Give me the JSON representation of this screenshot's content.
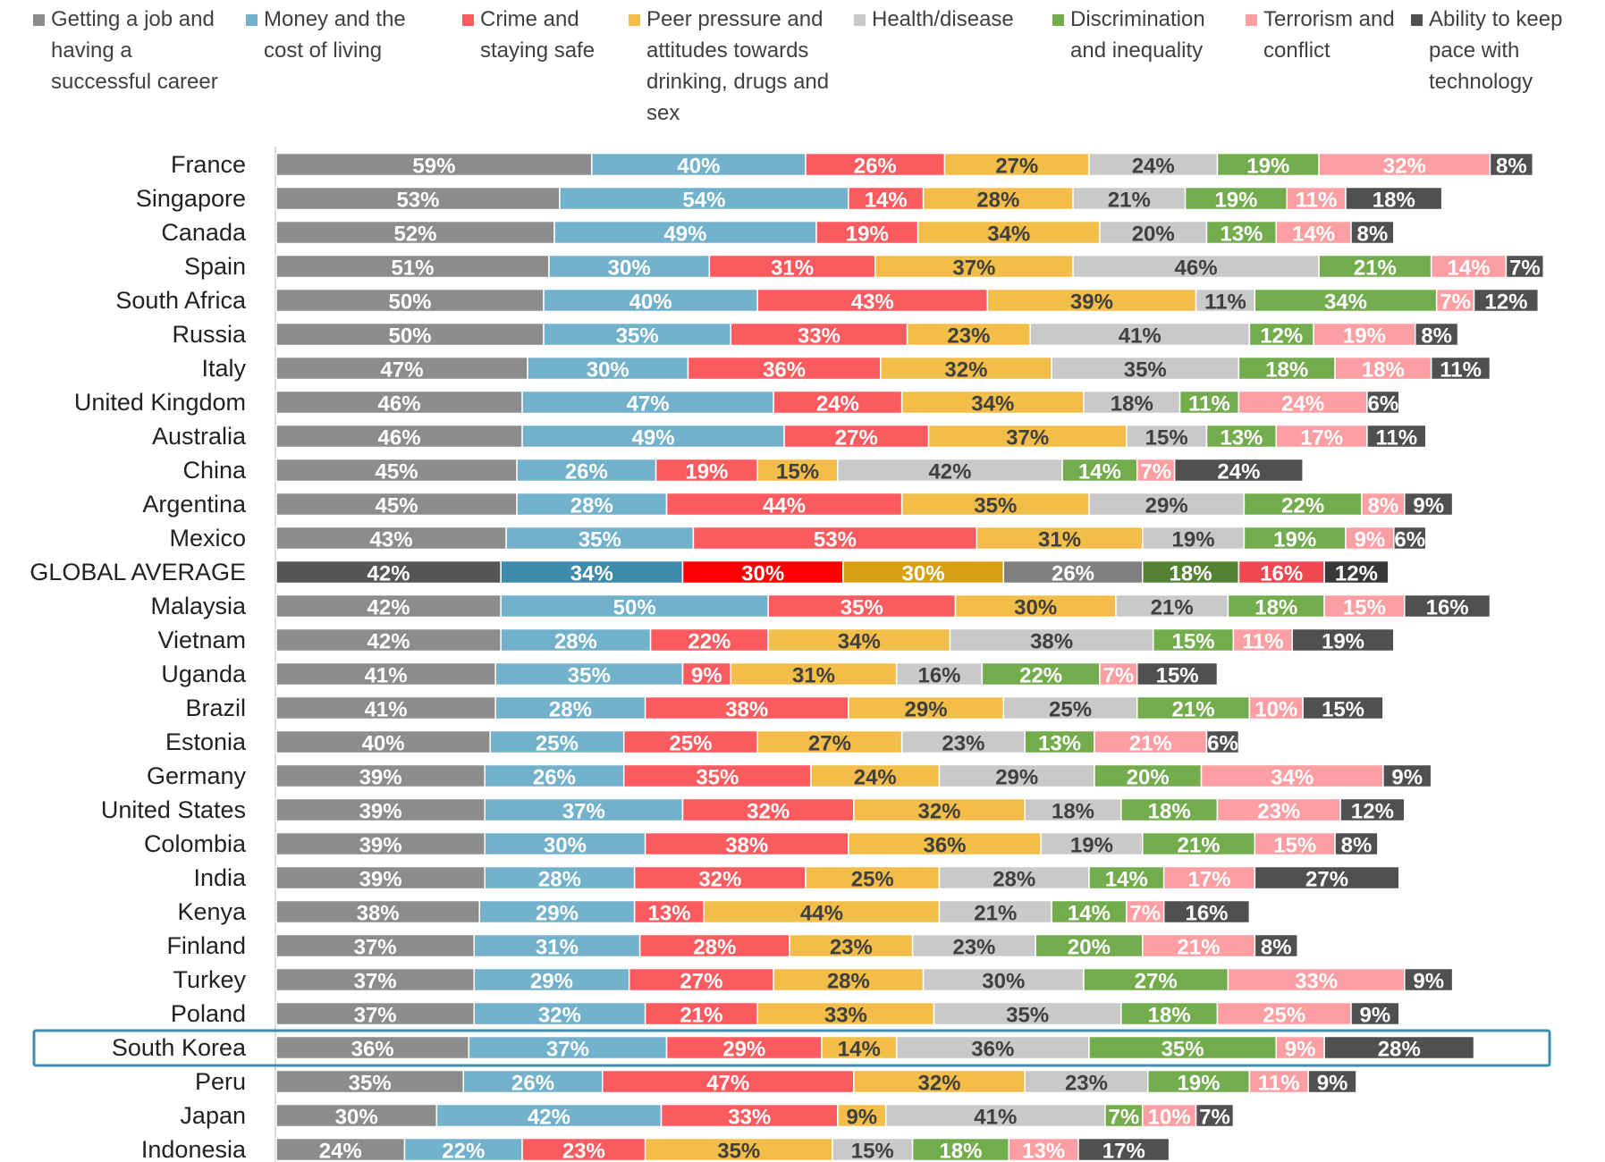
{
  "chart_data": {
    "type": "stacked-bar",
    "orientation": "horizontal",
    "categories": [
      "France",
      "Singapore",
      "Canada",
      "Spain",
      "South Africa",
      "Russia",
      "Italy",
      "United Kingdom",
      "Australia",
      "China",
      "Argentina",
      "Mexico",
      "GLOBAL AVERAGE",
      "Malaysia",
      "Vietnam",
      "Uganda",
      "Brazil",
      "Estonia",
      "Germany",
      "United States",
      "Colombia",
      "India",
      "Kenya",
      "Finland",
      "Turkey",
      "Poland",
      "South Korea",
      "Peru",
      "Japan",
      "Indonesia"
    ],
    "emphasized_index": 12,
    "outlined_index": 26,
    "outline_color": "#3b8fae",
    "series": [
      {
        "name": "Getting a job and having a successful career",
        "color": "#8c8c8c",
        "emphasis_color": "#555555",
        "label_color": "#ffffff",
        "values": [
          59,
          53,
          52,
          51,
          50,
          50,
          47,
          46,
          46,
          45,
          45,
          43,
          42,
          42,
          42,
          41,
          41,
          40,
          39,
          39,
          39,
          39,
          38,
          37,
          37,
          37,
          36,
          35,
          30,
          24
        ],
        "value_labels": [
          "59%",
          "53%",
          "52%",
          "51%",
          "50%",
          "50%",
          "47%",
          "46%",
          "46%",
          "45%",
          "45%",
          "43%",
          "42%",
          "42%",
          "42%",
          "41%",
          "41%",
          "40%",
          "39%",
          "39%",
          "39%",
          "39%",
          "38%",
          "37%",
          "37%",
          "37%",
          "36%",
          "35%",
          "30%",
          "24%"
        ]
      },
      {
        "name": "Money and the cost of living",
        "color": "#72b1cb",
        "emphasis_color": "#3e8aaa",
        "label_color": "#ffffff",
        "values": [
          40,
          54,
          49,
          30,
          40,
          35,
          30,
          47,
          49,
          26,
          28,
          35,
          34,
          50,
          28,
          35,
          28,
          25,
          26,
          37,
          30,
          28,
          29,
          31,
          29,
          32,
          37,
          26,
          42,
          22
        ],
        "value_labels": [
          "40%",
          "54%",
          "49%",
          "30%",
          "40%",
          "35%",
          "30%",
          "47%",
          "49%",
          "26%",
          "28%",
          "35%",
          "34%",
          "50%",
          "28%",
          "35%",
          "28%",
          "25%",
          "26%",
          "37%",
          "30%",
          "28%",
          "29%",
          "31%",
          "29%",
          "32%",
          "37%",
          "26%",
          "42%",
          "22%"
        ]
      },
      {
        "name": "Crime and staying safe",
        "color": "#fb5a5f",
        "emphasis_color": "#ff0000",
        "label_color": "#ffffff",
        "values": [
          26,
          14,
          19,
          31,
          43,
          33,
          36,
          24,
          27,
          19,
          44,
          53,
          30,
          35,
          22,
          9,
          38,
          25,
          35,
          32,
          38,
          32,
          13,
          28,
          27,
          21,
          29,
          47,
          33,
          23
        ],
        "value_labels": [
          "26%",
          "14%",
          "19%",
          "31%",
          "43%",
          "33%",
          "36%",
          "24%",
          "27%",
          "19%",
          "44%",
          "53%",
          "30%",
          "35%",
          "22%",
          "9%",
          "38%",
          "25%",
          "35%",
          "32%",
          "38%",
          "32%",
          "13%",
          "28%",
          "27%",
          "21%",
          "29%",
          "47%",
          "33%",
          "23%"
        ]
      },
      {
        "name": "Peer pressure and attitudes towards drinking, drugs and sex",
        "color": "#f2bd48",
        "emphasis_color": "#d89f12",
        "label_color": "#404040",
        "values": [
          27,
          28,
          34,
          37,
          39,
          23,
          32,
          34,
          37,
          15,
          35,
          31,
          30,
          30,
          34,
          31,
          29,
          27,
          24,
          32,
          36,
          25,
          44,
          23,
          28,
          33,
          14,
          32,
          9,
          35
        ],
        "value_labels": [
          "27%",
          "28%",
          "34%",
          "37%",
          "39%",
          "23%",
          "32%",
          "34%",
          "37%",
          "15%",
          "35%",
          "31%",
          "30%",
          "30%",
          "34%",
          "31%",
          "29%",
          "27%",
          "24%",
          "32%",
          "36%",
          "25%",
          "44%",
          "23%",
          "28%",
          "33%",
          "14%",
          "32%",
          "9%",
          "35%"
        ]
      },
      {
        "name": "Health/disease",
        "color": "#c9c9c9",
        "emphasis_color": "#7f7f7f",
        "label_color": "#404040",
        "values": [
          24,
          21,
          20,
          46,
          11,
          41,
          35,
          18,
          15,
          42,
          29,
          19,
          26,
          21,
          38,
          16,
          25,
          23,
          29,
          18,
          19,
          28,
          21,
          23,
          30,
          35,
          36,
          23,
          41,
          15
        ],
        "value_labels": [
          "24%",
          "21%",
          "20%",
          "46%",
          "11%",
          "41%",
          "35%",
          "18%",
          "15%",
          "42%",
          "29%",
          "19%",
          "26%",
          "21%",
          "38%",
          "16%",
          "25%",
          "23%",
          "29%",
          "18%",
          "19%",
          "28%",
          "21%",
          "23%",
          "30%",
          "35%",
          "36%",
          "23%",
          "41%",
          "15%"
        ]
      },
      {
        "name": "Discrimination and inequality",
        "color": "#72ac4d",
        "emphasis_color": "#548235",
        "label_color": "#ffffff",
        "values": [
          19,
          19,
          13,
          21,
          34,
          12,
          18,
          11,
          13,
          14,
          22,
          19,
          18,
          18,
          15,
          22,
          21,
          13,
          20,
          18,
          21,
          14,
          14,
          20,
          27,
          18,
          35,
          19,
          7,
          18
        ],
        "value_labels": [
          "19%",
          "19%",
          "13%",
          "21%",
          "34%",
          "12%",
          "18%",
          "11%",
          "13%",
          "14%",
          "22%",
          "19%",
          "18%",
          "18%",
          "15%",
          "22%",
          "21%",
          "13%",
          "20%",
          "18%",
          "21%",
          "14%",
          "14%",
          "20%",
          "27%",
          "18%",
          "35%",
          "19%",
          "7%",
          "18%"
        ]
      },
      {
        "name": "Terrorism and conflict",
        "color": "#fc9ea2",
        "emphasis_color": "#f04850",
        "label_color": "#ffffff",
        "values": [
          32,
          11,
          14,
          14,
          7,
          19,
          18,
          24,
          17,
          7,
          8,
          9,
          16,
          15,
          11,
          7,
          10,
          21,
          34,
          23,
          15,
          17,
          7,
          21,
          33,
          25,
          9,
          11,
          10,
          13
        ],
        "value_labels": [
          "32%",
          "11%",
          "14%",
          "14%",
          "7%",
          "19%",
          "18%",
          "24%",
          "17%",
          "7%",
          "8%",
          "9%",
          "16%",
          "15%",
          "11%",
          "7%",
          "10%",
          "21%",
          "34%",
          "23%",
          "15%",
          "17%",
          "7%",
          "21%",
          "33%",
          "25%",
          "9%",
          "11%",
          "10%",
          "13%"
        ]
      },
      {
        "name": "Ability to keep pace with technology",
        "color": "#505050",
        "emphasis_color": "#383838",
        "label_color": "#ffffff",
        "values": [
          8,
          18,
          8,
          7,
          12,
          8,
          11,
          6,
          11,
          24,
          9,
          6,
          12,
          16,
          19,
          15,
          15,
          6,
          9,
          12,
          8,
          27,
          16,
          8,
          9,
          9,
          28,
          9,
          7,
          17
        ],
        "value_labels": [
          "8%",
          "18%",
          "8%",
          "7%",
          "12%",
          "8%",
          "11%",
          "6%",
          "11%",
          "24%",
          "9%",
          "6%",
          "12%",
          "16%",
          "19%",
          "15%",
          "15%",
          "6%",
          "9%",
          "12%",
          "8%",
          "27%",
          "16%",
          "8%",
          "9%",
          "9%",
          "28%",
          "9%",
          "7%",
          "17%"
        ]
      }
    ]
  }
}
